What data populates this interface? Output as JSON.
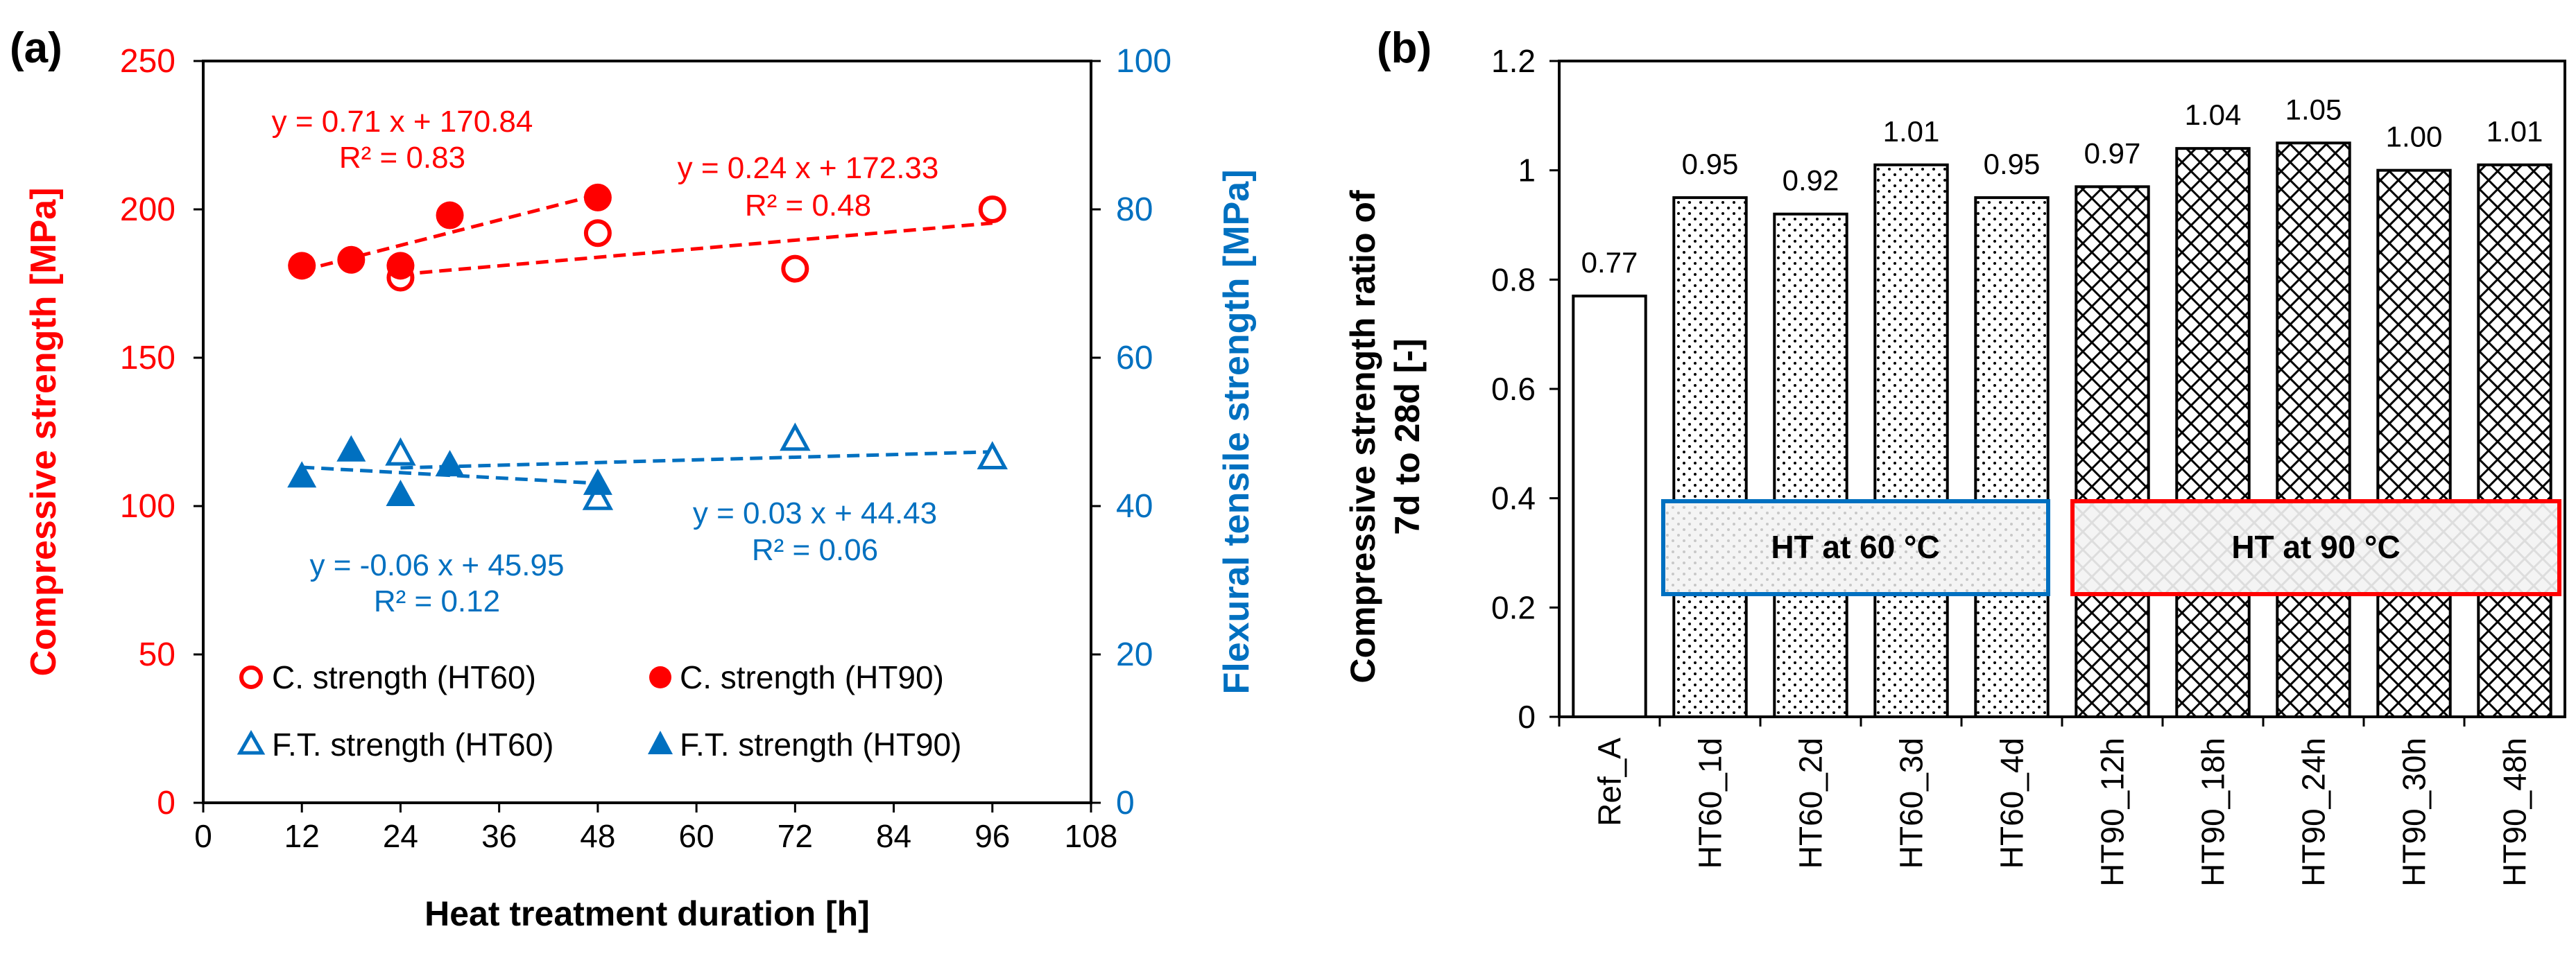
{
  "chart_data": [
    {
      "panel": "(a)",
      "type": "scatter",
      "xlabel": "Heat treatment duration [h]",
      "ylabel": "Compressive strength [MPa]",
      "y2label": "Flexural tensile strength [MPa]",
      "xlim": [
        0,
        108
      ],
      "ylim": [
        0,
        250
      ],
      "y2lim": [
        0,
        100
      ],
      "xticks": [
        0,
        12,
        24,
        36,
        48,
        60,
        72,
        84,
        96,
        108
      ],
      "yticks": [
        0,
        50,
        100,
        150,
        200,
        250
      ],
      "y2ticks": [
        0,
        20,
        40,
        60,
        80,
        100
      ],
      "grid": false,
      "legend_position": "bottom",
      "colors": {
        "compressive": "#ff0000",
        "flexural": "#0070c0"
      },
      "series": [
        {
          "name": "C. strength (HT60)",
          "axis": "left",
          "marker": "open-circle",
          "color": "#ff0000",
          "x": [
            24,
            48,
            72,
            96
          ],
          "y": [
            177,
            192,
            180,
            200
          ]
        },
        {
          "name": "C. strength (HT90)",
          "axis": "left",
          "marker": "filled-circle",
          "color": "#ff0000",
          "x": [
            12,
            18,
            24,
            30,
            48
          ],
          "y": [
            181,
            183,
            181,
            198,
            204
          ]
        },
        {
          "name": "F.T. strength (HT60)",
          "axis": "right",
          "marker": "open-triangle",
          "color": "#0070c0",
          "x": [
            24,
            48,
            72,
            96
          ],
          "y": [
            47,
            41,
            49,
            46.5
          ]
        },
        {
          "name": "F.T. strength (HT90)",
          "axis": "right",
          "marker": "filled-triangle",
          "color": "#0070c0",
          "x": [
            12,
            18,
            24,
            30,
            48
          ],
          "y": [
            44,
            47.5,
            41.5,
            45.5,
            43
          ]
        }
      ],
      "trendlines": [
        {
          "series": "C. strength (HT90)",
          "axis": "left",
          "slope": 0.71,
          "intercept": 170.84,
          "x_range": [
            12,
            48
          ],
          "color": "#ff0000",
          "equation": "y = 0.71 x + 170.84",
          "r2": "R² = 0.83"
        },
        {
          "series": "C. strength (HT60)",
          "axis": "left",
          "slope": 0.24,
          "intercept": 172.33,
          "x_range": [
            24,
            96
          ],
          "color": "#ff0000",
          "equation": "y = 0.24 x + 172.33",
          "r2": "R² = 0.48"
        },
        {
          "series": "F.T. strength (HT90)",
          "axis": "right",
          "slope": -0.06,
          "intercept": 45.95,
          "x_range": [
            12,
            48
          ],
          "color": "#0070c0",
          "equation": "y = -0.06 x + 45.95",
          "r2": "R² = 0.12"
        },
        {
          "series": "F.T. strength (HT60)",
          "axis": "right",
          "slope": 0.03,
          "intercept": 44.43,
          "x_range": [
            24,
            96
          ],
          "color": "#0070c0",
          "equation": "y = 0.03 x + 44.43",
          "r2": "R² = 0.06"
        }
      ]
    },
    {
      "panel": "(b)",
      "type": "bar",
      "ylabel_line1": "Compressive strength ratio of",
      "ylabel_line2": "7d to 28d [-]",
      "ylim": [
        0,
        1.2
      ],
      "yticks": [
        "0",
        "0.2",
        "0.4",
        "0.6",
        "0.8",
        "1",
        "1.2"
      ],
      "categories": [
        "Ref_A",
        "HT60_1d",
        "HT60_2d",
        "HT60_3d",
        "HT60_4d",
        "HT90_12h",
        "HT90_18h",
        "HT90_24h",
        "HT90_30h",
        "HT90_48h"
      ],
      "values": [
        0.77,
        0.95,
        0.92,
        1.01,
        0.95,
        0.97,
        1.04,
        1.05,
        1.0,
        1.01
      ],
      "value_labels": [
        "0.77",
        "0.95",
        "0.92",
        "1.01",
        "0.95",
        "0.97",
        "1.04",
        "1.05",
        "1.00",
        "1.01"
      ],
      "patterns": [
        "plain",
        "dots",
        "dots",
        "dots",
        "dots",
        "crosshatch",
        "crosshatch",
        "crosshatch",
        "crosshatch",
        "crosshatch"
      ],
      "groups": [
        {
          "label": "HT at 60 °C",
          "color": "#0070c0",
          "from": "HT60_1d",
          "to": "HT60_4d"
        },
        {
          "label": "HT at 90 °C",
          "color": "#ff0000",
          "from": "HT90_12h",
          "to": "HT90_48h"
        }
      ]
    }
  ]
}
